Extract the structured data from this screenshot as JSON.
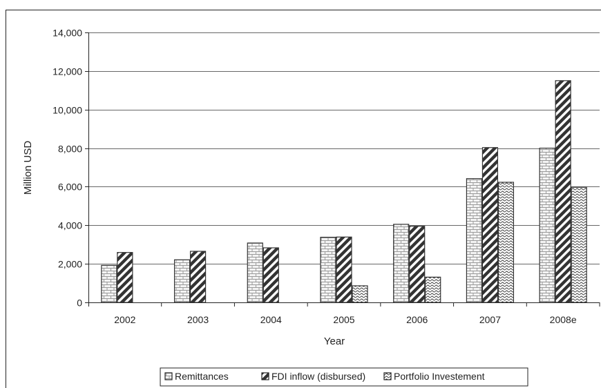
{
  "chart_data": {
    "type": "bar",
    "title": "",
    "xlabel": "Year",
    "ylabel": "Million USD",
    "categories": [
      "2002",
      "2003",
      "2004",
      "2005",
      "2006",
      "2007",
      "2008e"
    ],
    "series": [
      {
        "name": "Remittances",
        "pattern": "brick",
        "values": [
          1920,
          2210,
          3080,
          3380,
          4050,
          6420,
          8000
        ]
      },
      {
        "name": "FDI inflow (disbursed)",
        "pattern": "diagonal",
        "values": [
          2590,
          2650,
          2830,
          3390,
          3950,
          8030,
          11500
        ]
      },
      {
        "name": "Portfolio Investement",
        "pattern": "wave",
        "values": [
          null,
          null,
          null,
          860,
          1310,
          6230,
          5970
        ]
      }
    ],
    "ylim": [
      0,
      14000
    ],
    "yticks": [
      0,
      2000,
      4000,
      6000,
      8000,
      10000,
      12000,
      14000
    ],
    "ytick_labels": [
      "0",
      "2,000",
      "4,000",
      "6,000",
      "8,000",
      "10,000",
      "12,000",
      "14,000"
    ],
    "grid": true,
    "legend": "bottom"
  },
  "colors": {
    "frame": "#222222",
    "grid": "#666666",
    "bar_fill": "#ffffff",
    "bar_stroke": "#333333"
  }
}
